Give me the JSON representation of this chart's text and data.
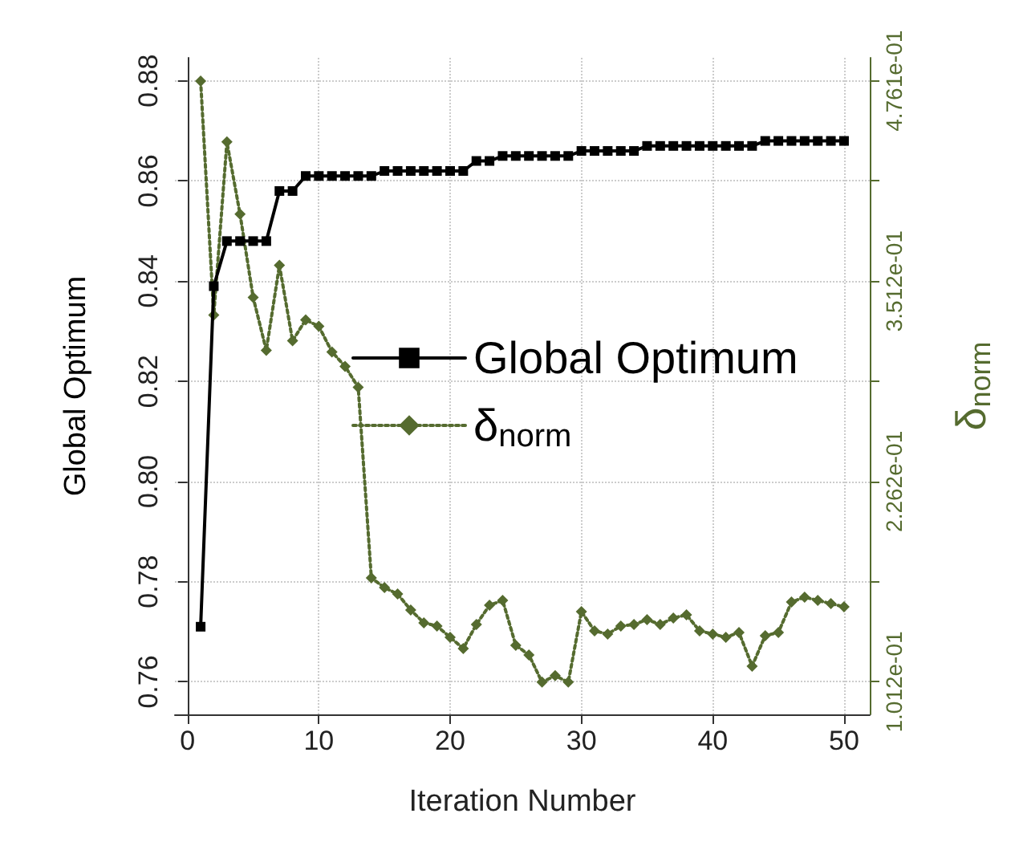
{
  "chart_data": {
    "type": "line",
    "xlabel": "Iteration Number",
    "ylabel": "Global Optimum",
    "y2label": "δ$_{norm}$",
    "x": [
      1,
      2,
      3,
      4,
      5,
      6,
      7,
      8,
      9,
      10,
      11,
      12,
      13,
      14,
      15,
      16,
      17,
      18,
      19,
      20,
      21,
      22,
      23,
      24,
      25,
      26,
      27,
      28,
      29,
      30,
      31,
      32,
      33,
      34,
      35,
      36,
      37,
      38,
      39,
      40,
      41,
      42,
      43,
      44,
      45,
      46,
      47,
      48,
      49,
      50
    ],
    "series": [
      {
        "name": "Global Optimum",
        "color": "#000000",
        "marker": "square",
        "line_style": "solid",
        "values": [
          0.771,
          0.839,
          0.848,
          0.848,
          0.848,
          0.848,
          0.858,
          0.858,
          0.861,
          0.861,
          0.861,
          0.861,
          0.861,
          0.861,
          0.862,
          0.862,
          0.862,
          0.862,
          0.862,
          0.862,
          0.862,
          0.864,
          0.864,
          0.865,
          0.865,
          0.865,
          0.865,
          0.865,
          0.865,
          0.866,
          0.866,
          0.866,
          0.866,
          0.866,
          0.867,
          0.867,
          0.867,
          0.867,
          0.867,
          0.867,
          0.867,
          0.867,
          0.867,
          0.868,
          0.868,
          0.868,
          0.868,
          0.868,
          0.868,
          0.868
        ]
      },
      {
        "name": "δ$_{norm}$",
        "color": "#556b2f",
        "marker": "diamond",
        "line_style": "dotted",
        "axis": "y2",
        "values": [
          0.476,
          0.33,
          0.438,
          0.393,
          0.341,
          0.308,
          0.361,
          0.314,
          0.327,
          0.323,
          0.307,
          0.298,
          0.285,
          0.166,
          0.16,
          0.156,
          0.146,
          0.138,
          0.136,
          0.129,
          0.122,
          0.137,
          0.149,
          0.152,
          0.124,
          0.118,
          0.101,
          0.105,
          0.101,
          0.145,
          0.133,
          0.131,
          0.136,
          0.137,
          0.14,
          0.137,
          0.141,
          0.143,
          0.133,
          0.131,
          0.129,
          0.132,
          0.111,
          0.13,
          0.132,
          0.151,
          0.154,
          0.152,
          0.15,
          0.148
        ]
      }
    ],
    "xlim": [
      -0.96,
      51.96
    ],
    "xticks": [
      0,
      10,
      20,
      30,
      40,
      50
    ],
    "ylim": [
      0.7535,
      0.8846
    ],
    "yticks": [
      0.76,
      0.78,
      {
        "value": 0.8,
        "label": "0.80"
      },
      0.82,
      0.84,
      0.86,
      0.88
    ],
    "y2lim": [
      0.0809,
      0.4905
    ],
    "y2ticks": [
      {
        "value": 0.1012,
        "label": "1.012e-01"
      },
      {
        "value": 0.16365,
        "label": null
      },
      {
        "value": 0.2262,
        "label": "2.262e-01"
      },
      {
        "value": 0.2887,
        "label": null
      },
      {
        "value": 0.3512,
        "label": "3.512e-01"
      },
      {
        "value": 0.41365,
        "label": null
      },
      {
        "value": 0.4761,
        "label": "4.761e-01"
      }
    ],
    "grid": true,
    "legend": "center"
  }
}
